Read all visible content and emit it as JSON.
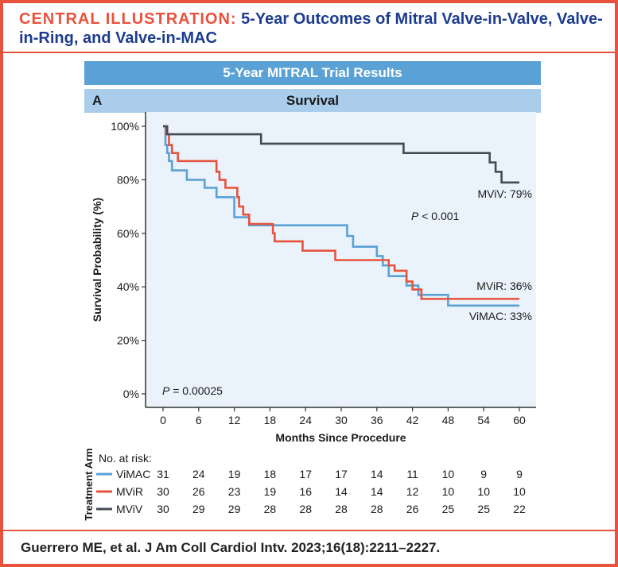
{
  "header": {
    "lead": "CENTRAL ILLUSTRATION:",
    "rest": "5-Year Outcomes of Mitral Valve-in-Valve, Valve-in-Ring, and Valve-in-MAC"
  },
  "banner": {
    "title": "5-Year MITRAL Trial Results"
  },
  "panel": {
    "letter": "A",
    "title": "Survival"
  },
  "citation": "Guerrero ME, et al. J Am Coll Cardiol Intv. 2023;16(18):2211–2227.",
  "colors": {
    "accent": "#e8523c",
    "navy": "#1d3c8f",
    "ViMAC": "#5aa1d5",
    "MViR": "#e8523c",
    "MViV": "#454b54",
    "plot_bg": "#eaf3fb"
  },
  "chart_data": {
    "type": "line",
    "step": true,
    "xlabel": "Months Since Procedure",
    "ylabel": "Survival Probability (%)",
    "xlim": [
      0,
      60
    ],
    "ylim": [
      0,
      100
    ],
    "x_ticks": [
      0,
      6,
      12,
      18,
      24,
      30,
      36,
      42,
      48,
      54,
      60
    ],
    "y_ticks": [
      0,
      20,
      40,
      60,
      80,
      100
    ],
    "y_tick_labels": [
      "0%",
      "20%",
      "40%",
      "60%",
      "80%",
      "100%"
    ],
    "grid": false,
    "annotations": {
      "p_inner": "P < 0.001",
      "p_lower": "P = 0.00025",
      "end_MViV": "MViV: 79%",
      "end_MViR": "MViR: 36%",
      "end_ViMAC": "ViMAC: 33%"
    },
    "series": [
      {
        "name": "ViMAC",
        "color": "#5aa1d5",
        "points": [
          [
            0,
            100
          ],
          [
            0.4,
            93
          ],
          [
            0.7,
            90
          ],
          [
            1,
            87
          ],
          [
            1.5,
            83.5
          ],
          [
            4,
            80
          ],
          [
            7,
            77
          ],
          [
            9,
            73.5
          ],
          [
            12,
            66
          ],
          [
            14.5,
            63
          ],
          [
            30.5,
            63
          ],
          [
            31,
            59
          ],
          [
            32,
            55
          ],
          [
            36,
            51.5
          ],
          [
            37,
            48
          ],
          [
            38,
            44
          ],
          [
            40,
            44
          ],
          [
            41,
            40.5
          ],
          [
            43,
            37
          ],
          [
            48,
            33
          ],
          [
            60,
            33
          ]
        ]
      },
      {
        "name": "MViR",
        "color": "#e8523c",
        "points": [
          [
            0,
            100
          ],
          [
            0.5,
            97
          ],
          [
            1,
            93
          ],
          [
            1.5,
            90
          ],
          [
            2.5,
            87
          ],
          [
            9,
            83
          ],
          [
            9.5,
            80
          ],
          [
            10.5,
            77
          ],
          [
            12.5,
            73.5
          ],
          [
            12.8,
            70
          ],
          [
            13.5,
            67
          ],
          [
            14.5,
            63.5
          ],
          [
            18.5,
            60
          ],
          [
            18.8,
            57
          ],
          [
            23.5,
            53.5
          ],
          [
            29,
            50
          ],
          [
            38,
            48
          ],
          [
            39,
            46
          ],
          [
            41,
            42
          ],
          [
            42,
            39
          ],
          [
            43.5,
            35.5
          ],
          [
            60,
            35.5
          ]
        ]
      },
      {
        "name": "MViV",
        "color": "#454b54",
        "points": [
          [
            0,
            100
          ],
          [
            0.7,
            97
          ],
          [
            16.5,
            93.5
          ],
          [
            40.5,
            90
          ],
          [
            55,
            86.5
          ],
          [
            56,
            83
          ],
          [
            57,
            79
          ],
          [
            60,
            79
          ]
        ]
      }
    ],
    "risk_table": {
      "axis_label": "Treatment Arm",
      "title": "No. at risk:",
      "time_points": [
        0,
        6,
        12,
        18,
        24,
        30,
        36,
        42,
        48,
        54,
        60
      ],
      "rows": [
        {
          "name": "ViMAC",
          "color": "#5aa1d5",
          "values": [
            31,
            24,
            19,
            18,
            17,
            17,
            14,
            11,
            10,
            9,
            9
          ]
        },
        {
          "name": "MViR",
          "color": "#e8523c",
          "values": [
            30,
            26,
            23,
            19,
            16,
            14,
            14,
            12,
            10,
            10,
            10
          ]
        },
        {
          "name": "MViV",
          "color": "#454b54",
          "values": [
            30,
            29,
            29,
            28,
            28,
            28,
            28,
            26,
            25,
            25,
            22
          ]
        }
      ]
    }
  }
}
